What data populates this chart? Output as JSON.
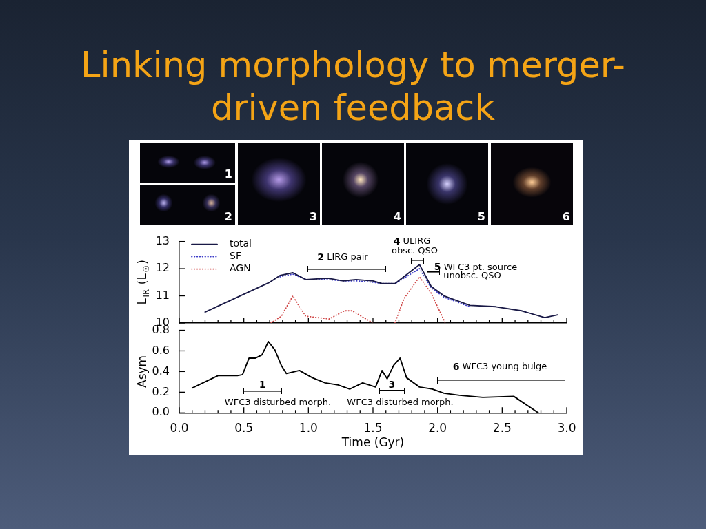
{
  "chart_data": [
    {
      "type": "line",
      "title": "Linking morphology to merger-driven feedback",
      "ylabel": "L$_{IR}$ (L$_{☉}$)",
      "xlim": [
        0,
        3
      ],
      "xticks": [
        0,
        {
          "value": 0.1,
          "label": null
        },
        {
          "value": 0.2,
          "label": null
        },
        {
          "value": 0.3,
          "label": null
        },
        {
          "value": 0.4,
          "label": null
        },
        0.5,
        {
          "value": 0.6,
          "label": null
        },
        {
          "value": 0.7,
          "label": null
        },
        {
          "value": 0.8,
          "label": null
        },
        {
          "value": 0.9,
          "label": null
        },
        1,
        {
          "value": 1.1,
          "label": null
        },
        {
          "value": 1.2,
          "label": null
        },
        {
          "value": 1.3,
          "label": null
        },
        {
          "value": 1.4,
          "label": null
        },
        1.5,
        {
          "value": 1.6,
          "label": null
        },
        {
          "value": 1.7,
          "label": null
        },
        {
          "value": 1.8,
          "label": null
        },
        {
          "value": 1.9,
          "label": null
        },
        2,
        {
          "value": 2.1,
          "label": null
        },
        {
          "value": 2.2,
          "label": null
        },
        {
          "value": 2.3,
          "label": null
        },
        {
          "value": 2.4,
          "label": null
        },
        2.5,
        {
          "value": 2.6,
          "label": null
        },
        {
          "value": 2.7,
          "label": null
        },
        {
          "value": 2.8,
          "label": null
        },
        {
          "value": 2.9,
          "label": null
        },
        3
      ],
      "ylim": [
        10,
        13
      ],
      "yticks": [
        10,
        11,
        12,
        13
      ],
      "tick_labels": "y",
      "legend": "top left",
      "series": [
        {
          "name": "total",
          "color": "#191946",
          "line_style": "solid",
          "x": [
            0.2,
            0.7,
            0.78,
            0.88,
            0.98,
            1.15,
            1.27,
            1.37,
            1.5,
            1.57,
            1.67,
            1.86,
            1.95,
            2.05,
            2.25,
            2.45,
            2.65,
            2.83,
            2.93
          ],
          "values": [
            10.4,
            11.5,
            11.75,
            11.85,
            11.6,
            11.65,
            11.55,
            11.6,
            11.55,
            11.45,
            11.45,
            12.15,
            11.35,
            11.0,
            10.65,
            10.6,
            10.45,
            10.2,
            10.3
          ]
        },
        {
          "name": "SF",
          "color": "#3c3cc8",
          "line_style": "dotted",
          "x": [
            0.78,
            0.88,
            0.98,
            1.15,
            1.27,
            1.37,
            1.5,
            1.57,
            1.67,
            1.86,
            1.95,
            2.05,
            2.25
          ],
          "values": [
            11.7,
            11.8,
            11.6,
            11.6,
            11.55,
            11.55,
            11.5,
            11.45,
            11.45,
            12.0,
            11.3,
            10.95,
            10.6
          ]
        },
        {
          "name": "AGN",
          "color": "#d04848",
          "line_style": "dotted",
          "x": [
            0.71,
            0.79,
            0.88,
            0.93,
            0.98,
            1.16,
            1.28,
            1.34,
            1.41,
            1.5,
            1.58,
            1.67,
            1.74,
            1.86,
            1.95,
            2.01,
            2.06
          ],
          "values": [
            10.0,
            10.25,
            11.0,
            10.6,
            10.25,
            10.15,
            10.45,
            10.45,
            10.25,
            10.0,
            null,
            10.0,
            10.9,
            11.7,
            11.1,
            10.5,
            10.0
          ]
        }
      ],
      "annotations": [
        "1",
        "2",
        "3",
        "4",
        "5",
        "6",
        "2 LIRG pair",
        "4 ULIRG",
        "obsc. QSO",
        "5 WFC3 pt. source",
        "unobsc. QSO"
      ]
    },
    {
      "type": "line",
      "xlabel": "Time (Gyr)",
      "ylabel": "Asym",
      "xlim": [
        0,
        3
      ],
      "xticks": [
        {
          "value": 0,
          "label": "0.0"
        },
        {
          "value": 0.1,
          "label": null
        },
        {
          "value": 0.2,
          "label": null
        },
        {
          "value": 0.3,
          "label": null
        },
        {
          "value": 0.4,
          "label": null
        },
        {
          "value": 0.5,
          "label": "0.5"
        },
        {
          "value": 0.6,
          "label": null
        },
        {
          "value": 0.7,
          "label": null
        },
        {
          "value": 0.8,
          "label": null
        },
        {
          "value": 0.9,
          "label": null
        },
        {
          "value": 1,
          "label": "1.0"
        },
        {
          "value": 1.1,
          "label": null
        },
        {
          "value": 1.2,
          "label": null
        },
        {
          "value": 1.3,
          "label": null
        },
        {
          "value": 1.4,
          "label": null
        },
        {
          "value": 1.5,
          "label": "1.5"
        },
        {
          "value": 1.6,
          "label": null
        },
        {
          "value": 1.7,
          "label": null
        },
        {
          "value": 1.8,
          "label": null
        },
        {
          "value": 1.9,
          "label": null
        },
        {
          "value": 2,
          "label": "2.0"
        },
        {
          "value": 2.1,
          "label": null
        },
        {
          "value": 2.2,
          "label": null
        },
        {
          "value": 2.3,
          "label": null
        },
        {
          "value": 2.4,
          "label": null
        },
        {
          "value": 2.5,
          "label": "2.5"
        },
        {
          "value": 2.6,
          "label": null
        },
        {
          "value": 2.7,
          "label": null
        },
        {
          "value": 2.8,
          "label": null
        },
        {
          "value": 2.9,
          "label": null
        },
        {
          "value": 3,
          "label": "3.0"
        }
      ],
      "ylim": [
        0,
        0.8
      ],
      "yticks": [
        {
          "value": 0,
          "label": "0.0"
        },
        0.2,
        0.4,
        0.6,
        0.8
      ],
      "series": [
        {
          "color": "#000000",
          "x": [
            0.1,
            0.3,
            0.45,
            0.49,
            0.54,
            0.59,
            0.64,
            0.69,
            0.74,
            0.79,
            0.83,
            0.93,
            1.03,
            1.13,
            1.23,
            1.32,
            1.42,
            1.52,
            1.57,
            1.61,
            1.66,
            1.71,
            1.76,
            1.86,
            1.96,
            2.05,
            2.17,
            2.35,
            2.59,
            2.78
          ],
          "values": [
            0.24,
            0.36,
            0.36,
            0.37,
            0.53,
            0.53,
            0.56,
            0.69,
            0.61,
            0.46,
            0.38,
            0.41,
            0.34,
            0.29,
            0.27,
            0.23,
            0.29,
            0.25,
            0.41,
            0.33,
            0.46,
            0.53,
            0.34,
            0.25,
            0.23,
            0.19,
            0.17,
            0.15,
            0.16,
            0.0
          ]
        }
      ],
      "annotations": [
        "1",
        "WFC3 disturbed morph.",
        "3",
        "WFC3 disturbed morph.",
        "6 WFC3 young bulge"
      ]
    }
  ]
}
